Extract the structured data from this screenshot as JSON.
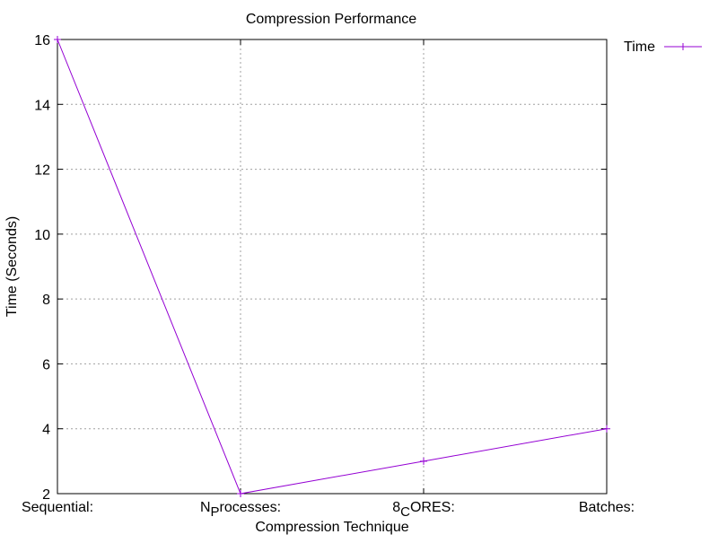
{
  "chart_data": {
    "type": "line",
    "title": "Compression Performance",
    "xlabel": "Compression Technique",
    "ylabel": "Time (Seconds)",
    "categories": [
      {
        "main": "Sequential:",
        "sub": "",
        "rest": ""
      },
      {
        "main": "N",
        "sub": "P",
        "rest": "rocesses:"
      },
      {
        "main": "8",
        "sub": "C",
        "rest": "ORES:"
      },
      {
        "main": "Batches:",
        "sub": "",
        "rest": ""
      }
    ],
    "series": [
      {
        "name": "Time",
        "values": [
          16,
          2,
          3,
          4
        ],
        "color": "#9400d3"
      }
    ],
    "ylim": [
      2,
      16
    ],
    "yticks": [
      2,
      4,
      6,
      8,
      10,
      12,
      14,
      16
    ],
    "grid": true,
    "legend_position": "top-right, outside plot"
  }
}
